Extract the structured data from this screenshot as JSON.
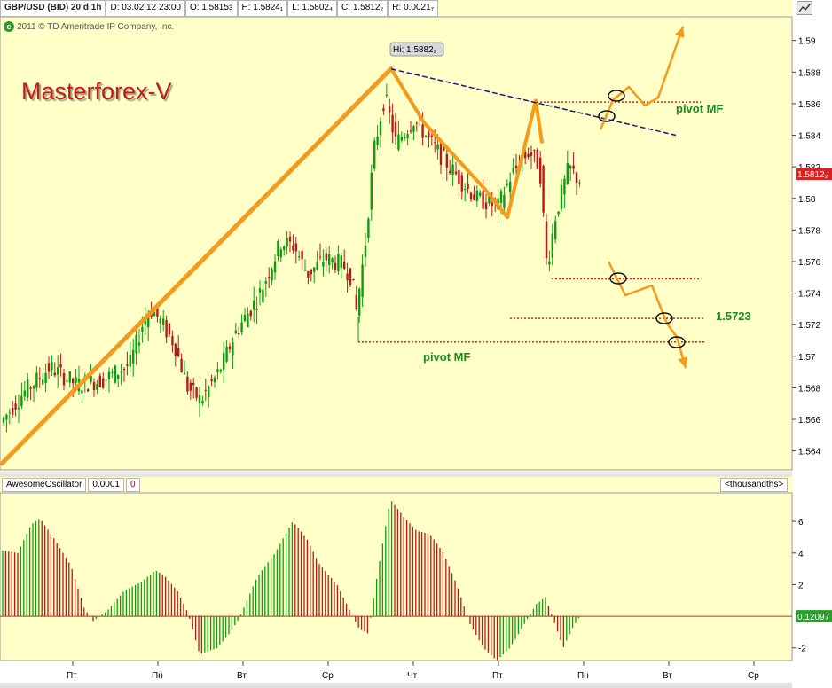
{
  "header": {
    "symbol": "GBP/USD (BID) 20 d 1h",
    "date": "D: 03.02.12 23:00",
    "open": "O: 1.5815з",
    "high": "H: 1.5824₁",
    "low": "L: 1.5802₄",
    "close": "C: 1.5812₂",
    "range": "R: 0.0021₇"
  },
  "copyright": "2011 © TD Ameritrade IP Company, Inc.",
  "copyright_badge": "e",
  "brand": "Masterforex-V",
  "annotations": {
    "hi_label": "Hi: 1.5882₂",
    "pivot_upper": "pivot MF",
    "pivot_lower": "pivot MF",
    "level_value": "1.5723"
  },
  "price_tag": "1.5812₂",
  "oscillator": {
    "name": "AwesomeOscillator",
    "value": "0.0001",
    "extra": "0",
    "units": "<thousandths>",
    "value_tag": "0.12097"
  },
  "colors": {
    "background": "#ffffc8",
    "bull": "#0f9b0f",
    "bear": "#b81818",
    "trend": "#f59b1c",
    "resistance": "#1a1a8c",
    "pivot": "#d02020",
    "brand": "#c11c1c"
  },
  "chart_data": [
    {
      "type": "candlestick",
      "title": "GBP/USD (BID) 20 d 1h",
      "ylim": [
        1.5628,
        1.5915
      ],
      "y_ticks": [
        "1.59",
        "1.588",
        "1.586",
        "1.584",
        "1.582",
        "1.58",
        "1.578",
        "1.576",
        "1.574",
        "1.572",
        "1.57",
        "1.568",
        "1.566",
        "1.564"
      ],
      "x_ticks": [
        "Пт",
        "Пн",
        "Вт",
        "Ср",
        "Чт",
        "Пт",
        "Пн",
        "Вт",
        "Ср"
      ],
      "current_price": 1.58122,
      "high_marker": 1.58822,
      "close_series": [
        [
          0,
          1.5655
        ],
        [
          30,
          1.5677
        ],
        [
          60,
          1.5693
        ],
        [
          90,
          1.5682
        ],
        [
          120,
          1.5685
        ],
        [
          150,
          1.5695
        ],
        [
          165,
          1.5722
        ],
        [
          175,
          1.573
        ],
        [
          200,
          1.5708
        ],
        [
          215,
          1.568
        ],
        [
          230,
          1.5672
        ],
        [
          250,
          1.569
        ],
        [
          270,
          1.5716
        ],
        [
          295,
          1.5738
        ],
        [
          320,
          1.5772
        ],
        [
          335,
          1.577
        ],
        [
          350,
          1.5752
        ],
        [
          370,
          1.5762
        ],
        [
          390,
          1.5758
        ],
        [
          400,
          1.575
        ],
        [
          405,
          1.5728
        ],
        [
          415,
          1.577
        ],
        [
          425,
          1.583
        ],
        [
          437,
          1.5865
        ],
        [
          450,
          1.5835
        ],
        [
          470,
          1.585
        ],
        [
          490,
          1.5835
        ],
        [
          510,
          1.582
        ],
        [
          540,
          1.58
        ],
        [
          565,
          1.5795
        ],
        [
          580,
          1.5815
        ],
        [
          600,
          1.583
        ],
        [
          612,
          1.582
        ],
        [
          620,
          1.5756
        ],
        [
          630,
          1.579
        ],
        [
          645,
          1.582
        ],
        [
          655,
          1.5812
        ]
      ]
    },
    {
      "type": "bar",
      "title": "AwesomeOscillator",
      "units": "thousandths",
      "ylim": [
        -2.8,
        7.8
      ],
      "y_ticks": [
        "6",
        "4",
        "2",
        "-2"
      ],
      "last_value": 0.12097,
      "series_profile": [
        [
          0,
          4.2
        ],
        [
          20,
          4.0
        ],
        [
          35,
          5.8
        ],
        [
          45,
          6.2
        ],
        [
          60,
          5.0
        ],
        [
          80,
          3.2
        ],
        [
          95,
          0.5
        ],
        [
          105,
          -0.3
        ],
        [
          120,
          0.3
        ],
        [
          140,
          1.6
        ],
        [
          160,
          2.2
        ],
        [
          175,
          2.9
        ],
        [
          185,
          2.6
        ],
        [
          200,
          1.6
        ],
        [
          212,
          0.2
        ],
        [
          225,
          -2.4
        ],
        [
          245,
          -2.0
        ],
        [
          260,
          -1.0
        ],
        [
          270,
          -0.1
        ],
        [
          290,
          2.5
        ],
        [
          310,
          4.0
        ],
        [
          330,
          6.0
        ],
        [
          345,
          5.0
        ],
        [
          360,
          3.3
        ],
        [
          380,
          2.0
        ],
        [
          395,
          0.3
        ],
        [
          405,
          -0.8
        ],
        [
          415,
          -1.1
        ],
        [
          425,
          2.5
        ],
        [
          440,
          7.4
        ],
        [
          455,
          6.3
        ],
        [
          470,
          5.4
        ],
        [
          485,
          5.2
        ],
        [
          500,
          4.0
        ],
        [
          515,
          2.0
        ],
        [
          530,
          -0.5
        ],
        [
          545,
          -2.0
        ],
        [
          560,
          -2.8
        ],
        [
          575,
          -2.0
        ],
        [
          590,
          -0.6
        ],
        [
          605,
          0.8
        ],
        [
          615,
          1.2
        ],
        [
          625,
          -0.4
        ],
        [
          635,
          -2.0
        ],
        [
          645,
          -0.8
        ],
        [
          655,
          0.12
        ]
      ]
    }
  ]
}
